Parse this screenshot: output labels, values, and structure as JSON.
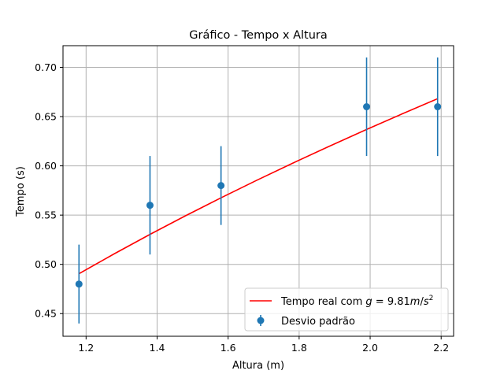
{
  "chart_data": {
    "type": "scatter",
    "title": "Gráfico - Tempo x Altura",
    "xlabel": "Altura (m)",
    "ylabel": "Tempo (s)",
    "xlim": [
      1.135,
      2.235
    ],
    "ylim": [
      0.427,
      0.722
    ],
    "xticks": [
      1.2,
      1.4,
      1.6,
      1.8,
      2.0,
      2.2
    ],
    "xtick_labels": [
      "1.2",
      "1.4",
      "1.6",
      "1.8",
      "2.0",
      "2.2"
    ],
    "yticks": [
      0.45,
      0.5,
      0.55,
      0.6,
      0.65,
      0.7
    ],
    "ytick_labels": [
      "0.45",
      "0.50",
      "0.55",
      "0.60",
      "0.65",
      "0.70"
    ],
    "grid": true,
    "legend_position": "bottom-right",
    "series": [
      {
        "name": "Tempo real com g = 9.81m/s²",
        "kind": "line",
        "color": "#ff0000",
        "g": 9.81,
        "x": [
          1.18,
          1.28,
          1.38,
          1.48,
          1.58,
          1.68,
          1.78,
          1.88,
          1.99,
          2.09,
          2.19
        ]
      },
      {
        "name": "Desvio padrão",
        "kind": "errorbar",
        "color": "#1f77b4",
        "x": [
          1.18,
          1.38,
          1.58,
          1.99,
          2.19
        ],
        "y": [
          0.48,
          0.56,
          0.58,
          0.66,
          0.66
        ],
        "yerr": [
          0.04,
          0.05,
          0.04,
          0.05,
          0.05
        ]
      }
    ],
    "legend": {
      "line_prefix": "Tempo real com ",
      "line_var": "g",
      "line_eq": " = 9.81",
      "line_unit_m": "m",
      "line_unit_slash": "/",
      "line_unit_s": "s",
      "line_unit_exp": "2",
      "errorbar_label": "Desvio padrão"
    }
  }
}
